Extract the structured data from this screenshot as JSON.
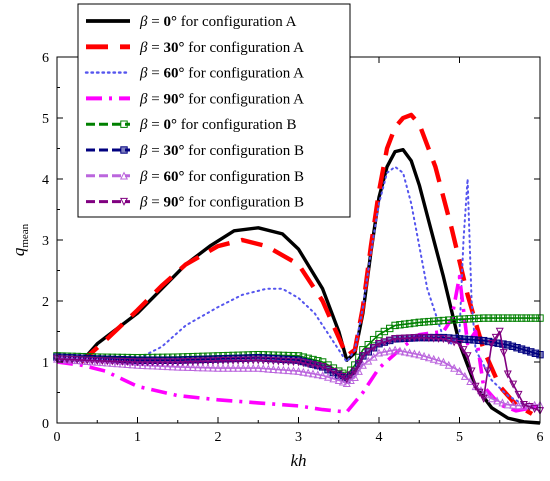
{
  "chart_data": {
    "type": "line",
    "xlabel": "kh",
    "ylabel": "q",
    "ylabel_sub": "mean",
    "xlim": [
      0,
      6
    ],
    "ylim": [
      0,
      6
    ],
    "xticks": [
      "0",
      "1",
      "2",
      "3",
      "4",
      "5",
      "6"
    ],
    "yticks": [
      "0",
      "1",
      "2",
      "3",
      "4",
      "5",
      "6"
    ],
    "grid": false,
    "legend_position": "top-left",
    "series": [
      {
        "name": "β = 0° for configuration A",
        "beta_symbol": "β",
        "beta_value": "0°",
        "label_rest": "for configuration A",
        "color": "#000000",
        "style": "solid",
        "marker": "none",
        "x": [
          0.3,
          0.5,
          0.7,
          1.0,
          1.3,
          1.6,
          1.9,
          2.2,
          2.5,
          2.8,
          3.0,
          3.3,
          3.5,
          3.6,
          3.7,
          3.8,
          3.9,
          4.0,
          4.1,
          4.2,
          4.3,
          4.4,
          4.5,
          4.6,
          4.8,
          5.0,
          5.2,
          5.4,
          5.6,
          5.8,
          6.0
        ],
        "y": [
          1.0,
          1.3,
          1.5,
          1.8,
          2.2,
          2.6,
          2.9,
          3.15,
          3.2,
          3.1,
          2.85,
          2.2,
          1.5,
          1.03,
          1.15,
          1.8,
          2.8,
          3.7,
          4.2,
          4.45,
          4.48,
          4.3,
          3.9,
          3.4,
          2.4,
          1.3,
          0.6,
          0.25,
          0.08,
          0.02,
          0.0
        ]
      },
      {
        "name": "β = 30° for configuration A",
        "beta_symbol": "β",
        "beta_value": "30°",
        "label_rest": "for configuration A",
        "color": "#ff0000",
        "style": "longdash",
        "marker": "none",
        "x": [
          0.3,
          0.6,
          1.0,
          1.3,
          1.6,
          2.0,
          2.3,
          2.6,
          3.0,
          3.3,
          3.5,
          3.6,
          3.7,
          3.8,
          3.9,
          4.0,
          4.1,
          4.2,
          4.3,
          4.4,
          4.5,
          4.7,
          4.9,
          5.1,
          5.3,
          5.5,
          5.7,
          5.9
        ],
        "y": [
          1.0,
          1.35,
          1.85,
          2.25,
          2.6,
          2.9,
          3.0,
          2.9,
          2.6,
          2.0,
          1.4,
          1.1,
          1.2,
          1.9,
          2.9,
          3.8,
          4.5,
          4.85,
          5.0,
          5.05,
          4.9,
          4.2,
          3.2,
          2.1,
          1.2,
          0.6,
          0.3,
          0.15
        ]
      },
      {
        "name": "β = 60° for configuration A",
        "beta_symbol": "β",
        "beta_value": "60°",
        "label_rest": "for configuration A",
        "color": "#5555ee",
        "style": "dotted",
        "marker": "none",
        "x": [
          0.0,
          0.5,
          1.0,
          1.3,
          1.6,
          2.0,
          2.3,
          2.6,
          2.8,
          3.0,
          3.2,
          3.4,
          3.6,
          3.7,
          3.8,
          3.9,
          4.0,
          4.1,
          4.2,
          4.3,
          4.4,
          4.5,
          4.6,
          4.8,
          4.9,
          5.0,
          5.05,
          5.1,
          5.15,
          5.2,
          5.4,
          5.6,
          5.8,
          6.0
        ],
        "y": [
          1.05,
          1.02,
          1.05,
          1.25,
          1.6,
          1.9,
          2.1,
          2.2,
          2.2,
          2.05,
          1.8,
          1.4,
          1.0,
          1.2,
          1.9,
          2.8,
          3.6,
          4.1,
          4.2,
          4.1,
          3.6,
          2.9,
          2.2,
          1.4,
          1.3,
          1.5,
          3.0,
          4.0,
          2.0,
          1.2,
          0.7,
          0.45,
          0.3,
          0.25
        ]
      },
      {
        "name": "β = 90° for configuration A",
        "beta_symbol": "β",
        "beta_value": "90°",
        "label_rest": "for configuration A",
        "color": "#ff00ff",
        "style": "dashdot",
        "marker": "none",
        "x": [
          0.0,
          0.3,
          0.6,
          1.0,
          1.5,
          2.0,
          2.5,
          3.0,
          3.3,
          3.6,
          3.8,
          4.0,
          4.3,
          4.5,
          4.8,
          4.9,
          5.0,
          5.1,
          5.15,
          5.2,
          5.3,
          5.5,
          5.7,
          5.9,
          6.0
        ],
        "y": [
          1.0,
          0.95,
          0.85,
          0.6,
          0.45,
          0.38,
          0.33,
          0.28,
          0.22,
          0.18,
          0.5,
          0.9,
          1.25,
          1.45,
          1.5,
          1.7,
          2.4,
          1.3,
          1.4,
          1.5,
          0.6,
          0.3,
          0.2,
          0.25,
          0.3
        ]
      },
      {
        "name": "β = 0° for configuration B",
        "beta_symbol": "β",
        "beta_value": "0°",
        "label_rest": "for configuration B",
        "color": "#008000",
        "style": "solid",
        "marker": "square",
        "x": [
          0.0,
          0.5,
          1.0,
          1.5,
          2.0,
          2.5,
          3.0,
          3.3,
          3.5,
          3.6,
          3.7,
          3.8,
          4.0,
          4.2,
          4.5,
          4.8,
          5.0,
          5.3,
          5.6,
          6.0
        ],
        "y": [
          1.1,
          1.08,
          1.07,
          1.08,
          1.1,
          1.12,
          1.1,
          1.0,
          0.85,
          0.78,
          0.95,
          1.2,
          1.45,
          1.6,
          1.65,
          1.68,
          1.7,
          1.72,
          1.72,
          1.72
        ]
      },
      {
        "name": "β = 30° for configuration B",
        "beta_symbol": "β",
        "beta_value": "30°",
        "label_rest": "for configuration B",
        "color": "#00007f",
        "style": "solid",
        "marker": "square-half",
        "x": [
          0.0,
          0.5,
          1.0,
          1.5,
          2.0,
          2.5,
          3.0,
          3.3,
          3.5,
          3.6,
          3.7,
          3.8,
          4.0,
          4.2,
          4.5,
          4.8,
          5.0,
          5.3,
          5.6,
          6.0
        ],
        "y": [
          1.08,
          1.05,
          1.03,
          1.03,
          1.05,
          1.07,
          1.03,
          0.92,
          0.78,
          0.72,
          0.85,
          1.1,
          1.3,
          1.38,
          1.4,
          1.4,
          1.38,
          1.35,
          1.28,
          1.12
        ]
      },
      {
        "name": "β = 60° for configuration B",
        "beta_symbol": "β",
        "beta_value": "60°",
        "label_rest": "for configuration B",
        "color": "#bb66dd",
        "style": "solid",
        "marker": "triangle",
        "x": [
          0.0,
          0.5,
          1.0,
          1.5,
          2.0,
          2.5,
          3.0,
          3.3,
          3.5,
          3.6,
          3.7,
          3.8,
          4.0,
          4.2,
          4.5,
          4.8,
          5.0,
          5.2,
          5.4,
          5.6,
          5.8,
          6.0
        ],
        "y": [
          1.05,
          1.0,
          0.95,
          0.92,
          0.9,
          0.9,
          0.85,
          0.78,
          0.7,
          0.65,
          0.75,
          0.95,
          1.15,
          1.2,
          1.12,
          1.0,
          0.85,
          0.6,
          0.4,
          0.3,
          0.28,
          0.3
        ]
      },
      {
        "name": "β = 90° for configuration B",
        "beta_symbol": "β",
        "beta_value": "90°",
        "label_rest": "for configuration B",
        "color": "#800080",
        "style": "solid",
        "marker": "triangle-down",
        "x": [
          0.0,
          0.5,
          1.0,
          1.5,
          2.0,
          2.5,
          3.0,
          3.3,
          3.5,
          3.6,
          3.7,
          3.8,
          4.0,
          4.2,
          4.5,
          4.8,
          5.0,
          5.1,
          5.2,
          5.3,
          5.4,
          5.5,
          5.6,
          5.8,
          6.0
        ],
        "y": [
          1.05,
          1.02,
          1.0,
          1.0,
          1.02,
          1.03,
          1.0,
          0.92,
          0.8,
          0.72,
          0.85,
          1.1,
          1.3,
          1.38,
          1.4,
          1.38,
          1.3,
          1.1,
          0.6,
          0.4,
          1.3,
          1.5,
          0.8,
          0.3,
          0.2
        ]
      }
    ]
  }
}
